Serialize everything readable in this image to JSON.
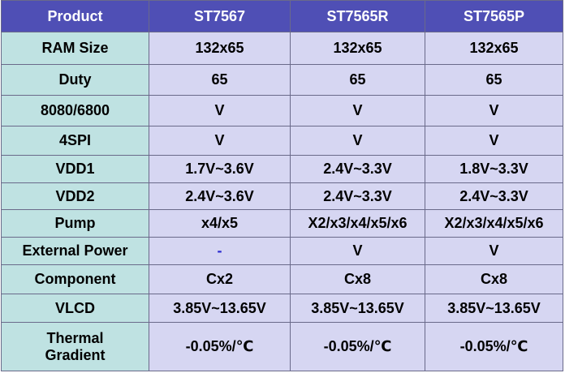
{
  "table": {
    "header": [
      "Product",
      "ST7567",
      "ST7565R",
      "ST7565P"
    ],
    "rows": [
      [
        "RAM Size",
        "132x65",
        "132x65",
        "132x65"
      ],
      [
        "Duty",
        "65",
        "65",
        "65"
      ],
      [
        "8080/6800",
        "V",
        "V",
        "V"
      ],
      [
        "4SPI",
        "V",
        "V",
        "V"
      ],
      [
        "VDD1",
        "1.7V~3.6V",
        "2.4V~3.3V",
        "1.8V~3.3V"
      ],
      [
        "VDD2",
        "2.4V~3.6V",
        "2.4V~3.3V",
        "2.4V~3.3V"
      ],
      [
        "Pump",
        "x4/x5",
        "X2/x3/x4/x5/x6",
        "X2/x3/x4/x5/x6"
      ],
      [
        "External Power",
        "-",
        "V",
        "V"
      ],
      [
        "Component",
        "Cx2",
        "Cx8",
        "Cx8"
      ],
      [
        "VLCD",
        "3.85V~13.65V",
        "3.85V~13.65V",
        "3.85V~13.65V"
      ],
      [
        "Thermal\nGradient",
        "-0.05%/℃",
        "-0.05%/℃",
        "-0.05%/℃"
      ]
    ]
  }
}
